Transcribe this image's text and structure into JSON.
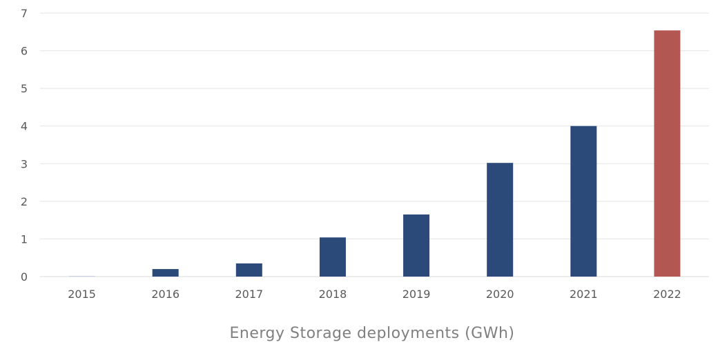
{
  "chart_data": {
    "type": "bar",
    "title": "",
    "xlabel": "Energy Storage deployments (GWh)",
    "ylabel": "",
    "ylim": [
      0,
      7
    ],
    "yticks": [
      "0",
      "1",
      "2",
      "3",
      "4",
      "5",
      "6",
      "7"
    ],
    "grid": true,
    "categories": [
      "2015",
      "2016",
      "2017",
      "2018",
      "2019",
      "2020",
      "2021",
      "2022"
    ],
    "values": [
      0.02,
      0.2,
      0.35,
      1.04,
      1.65,
      3.02,
      4.0,
      6.54
    ],
    "colors": [
      "#c9d1e3",
      "#2b4a7a",
      "#2b4a7a",
      "#2b4a7a",
      "#2b4a7a",
      "#2b4a7a",
      "#2b4a7a",
      "#b35752"
    ]
  }
}
